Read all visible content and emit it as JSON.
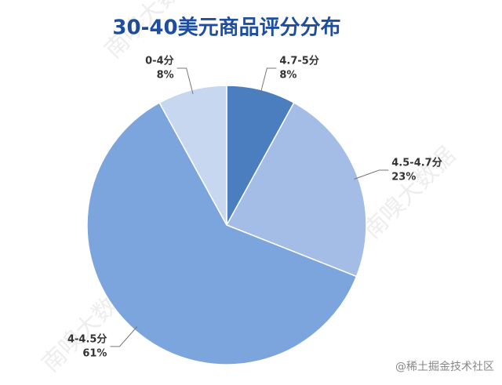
{
  "chart_data": {
    "type": "pie",
    "title": "30-40美元商品评分分布",
    "categories": [
      "4.7-5分",
      "4.5-4.7分",
      "4-4.5分",
      "0-4分"
    ],
    "values": [
      8,
      23,
      61,
      8
    ],
    "value_labels": [
      "8%",
      "23%",
      "61%",
      "8%"
    ],
    "colors": [
      "#4a7ebf",
      "#a3bde6",
      "#7ba5dc",
      "#c6d7ef"
    ],
    "watermark": "南嗅大数据",
    "credit": "@稀土掘金技术社区"
  }
}
